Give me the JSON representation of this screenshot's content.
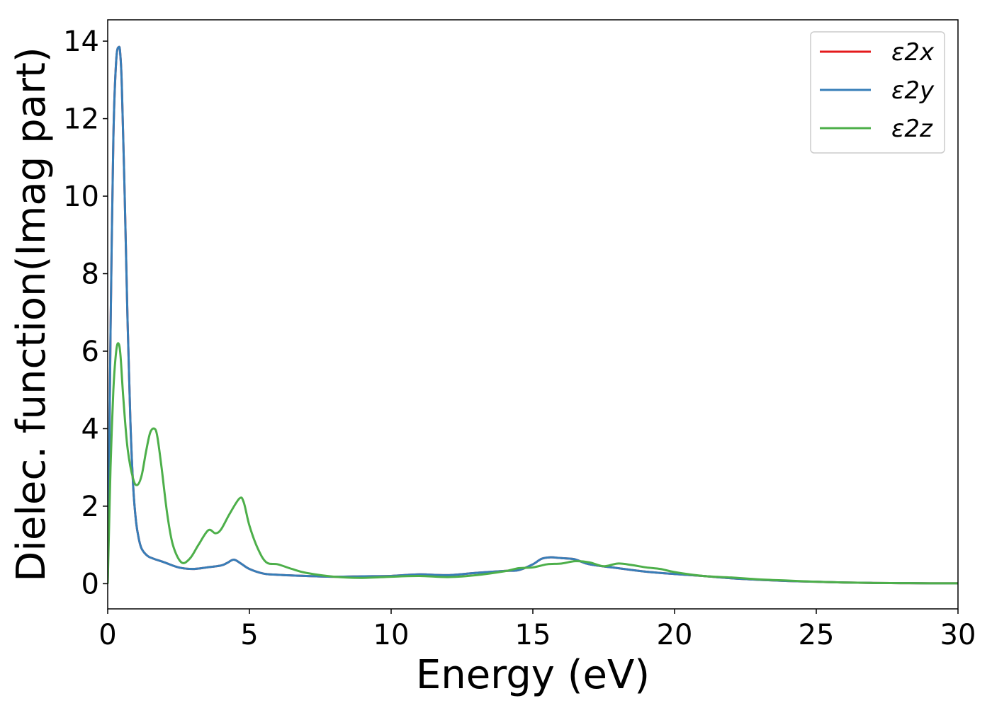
{
  "chart_data": {
    "type": "line",
    "title": "",
    "xlabel": "Energy (eV)",
    "ylabel": "Dielec. function(Imag part)",
    "xlim": [
      0,
      30
    ],
    "ylim": [
      -0.65,
      14.55
    ],
    "xticks": [
      0,
      5,
      10,
      15,
      20,
      25,
      30
    ],
    "yticks": [
      0,
      2,
      4,
      6,
      8,
      10,
      12,
      14
    ],
    "grid": false,
    "legend": "top-right",
    "series": [
      {
        "name": "ε2x",
        "color": "#e41a1c",
        "x": [
          0,
          0.05,
          0.1,
          0.2,
          0.3,
          0.4,
          0.45,
          0.5,
          0.6,
          0.7,
          0.8,
          0.9,
          1.0,
          1.1,
          1.2,
          1.4,
          1.6,
          2.0,
          2.5,
          3.0,
          3.5,
          4.0,
          4.2,
          4.45,
          4.7,
          5.0,
          5.5,
          6.0,
          7.0,
          8.0,
          9.0,
          10.0,
          11.0,
          12.0,
          13.0,
          14.0,
          14.5,
          15.0,
          15.3,
          15.6,
          16.0,
          16.4,
          16.6,
          17.0,
          18.0,
          19.0,
          20.0,
          21.0,
          22.0,
          23.0,
          24.0,
          25.0,
          26.0,
          27.0,
          28.0,
          29.0,
          30.0
        ],
        "y": [
          0,
          3.0,
          6.5,
          11.5,
          13.5,
          13.85,
          13.6,
          12.8,
          10.0,
          6.8,
          4.2,
          2.5,
          1.6,
          1.15,
          0.9,
          0.72,
          0.65,
          0.55,
          0.42,
          0.38,
          0.42,
          0.47,
          0.53,
          0.62,
          0.52,
          0.38,
          0.26,
          0.23,
          0.2,
          0.18,
          0.19,
          0.2,
          0.24,
          0.22,
          0.28,
          0.33,
          0.35,
          0.5,
          0.64,
          0.68,
          0.66,
          0.64,
          0.6,
          0.5,
          0.4,
          0.31,
          0.25,
          0.2,
          0.14,
          0.1,
          0.07,
          0.05,
          0.03,
          0.02,
          0.015,
          0.01,
          0.01
        ]
      },
      {
        "name": "ε2y",
        "color": "#377eb8",
        "x": [
          0,
          0.05,
          0.1,
          0.2,
          0.3,
          0.4,
          0.45,
          0.5,
          0.6,
          0.7,
          0.8,
          0.9,
          1.0,
          1.1,
          1.2,
          1.4,
          1.6,
          2.0,
          2.5,
          3.0,
          3.5,
          4.0,
          4.2,
          4.45,
          4.7,
          5.0,
          5.5,
          6.0,
          7.0,
          8.0,
          9.0,
          10.0,
          11.0,
          12.0,
          13.0,
          14.0,
          14.5,
          15.0,
          15.3,
          15.6,
          16.0,
          16.4,
          16.6,
          17.0,
          18.0,
          19.0,
          20.0,
          21.0,
          22.0,
          23.0,
          24.0,
          25.0,
          26.0,
          27.0,
          28.0,
          29.0,
          30.0
        ],
        "y": [
          0,
          3.0,
          6.5,
          11.5,
          13.5,
          13.85,
          13.6,
          12.8,
          10.0,
          6.8,
          4.2,
          2.5,
          1.6,
          1.15,
          0.9,
          0.72,
          0.65,
          0.55,
          0.42,
          0.38,
          0.42,
          0.47,
          0.53,
          0.62,
          0.52,
          0.38,
          0.26,
          0.23,
          0.2,
          0.18,
          0.19,
          0.2,
          0.24,
          0.22,
          0.28,
          0.33,
          0.35,
          0.5,
          0.64,
          0.68,
          0.66,
          0.64,
          0.6,
          0.5,
          0.4,
          0.31,
          0.25,
          0.2,
          0.14,
          0.1,
          0.07,
          0.05,
          0.03,
          0.02,
          0.015,
          0.01,
          0.01
        ]
      },
      {
        "name": "ε2z",
        "color": "#4daf4a",
        "x": [
          0,
          0.05,
          0.1,
          0.2,
          0.3,
          0.38,
          0.45,
          0.55,
          0.7,
          0.9,
          1.05,
          1.2,
          1.35,
          1.5,
          1.65,
          1.75,
          1.9,
          2.1,
          2.3,
          2.6,
          2.9,
          3.2,
          3.55,
          3.8,
          4.0,
          4.3,
          4.65,
          4.8,
          5.0,
          5.3,
          5.6,
          6.0,
          6.5,
          7.0,
          8.0,
          9.0,
          10.0,
          11.0,
          12.0,
          13.0,
          14.0,
          14.5,
          15.0,
          15.5,
          16.0,
          16.5,
          17.0,
          17.5,
          18.0,
          18.5,
          19.0,
          19.5,
          20.0,
          21.0,
          22.0,
          23.0,
          24.0,
          25.0,
          26.0,
          27.0,
          28.0,
          29.0,
          30.0
        ],
        "y": [
          0,
          1.5,
          3.0,
          5.0,
          6.0,
          6.2,
          5.9,
          4.8,
          3.5,
          2.7,
          2.55,
          2.8,
          3.4,
          3.9,
          4.0,
          3.8,
          3.0,
          1.8,
          1.0,
          0.55,
          0.65,
          1.0,
          1.38,
          1.3,
          1.4,
          1.8,
          2.2,
          2.1,
          1.5,
          0.9,
          0.55,
          0.5,
          0.38,
          0.28,
          0.18,
          0.15,
          0.18,
          0.2,
          0.17,
          0.22,
          0.32,
          0.4,
          0.42,
          0.5,
          0.52,
          0.58,
          0.55,
          0.45,
          0.52,
          0.48,
          0.42,
          0.38,
          0.3,
          0.2,
          0.16,
          0.11,
          0.08,
          0.05,
          0.03,
          0.02,
          0.015,
          0.01,
          0.01
        ]
      }
    ]
  }
}
